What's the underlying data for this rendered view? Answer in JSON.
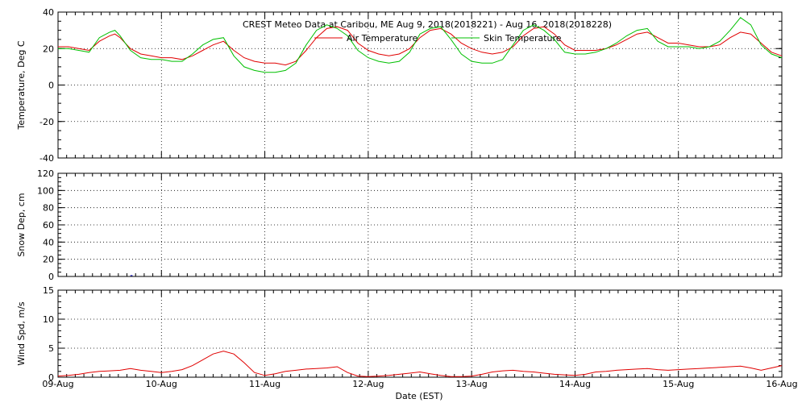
{
  "figure": {
    "title": "CREST Meteo Data at Caribou, ME   Aug  9, 2018(2018221) - Aug 16, 2018(2018228)",
    "xlabel": "Date (EST)"
  },
  "chart_data": [
    {
      "type": "line",
      "panel": "temperature",
      "ylabel": "Temperature, Deg C",
      "ylim": [
        -40,
        40
      ],
      "yticks": [
        -40,
        -20,
        0,
        20,
        40
      ],
      "xlim": [
        "2018-08-09",
        "2018-08-16"
      ],
      "xticks": [
        "09-Aug",
        "10-Aug",
        "11-Aug",
        "12-Aug",
        "13-Aug",
        "14-Aug",
        "15-Aug",
        "16-Aug"
      ],
      "grid": true,
      "legend_placement": "top",
      "series": [
        {
          "name": "Air Temperature",
          "color": "#e00000",
          "x": [
            9.0,
            9.1,
            9.2,
            9.3,
            9.4,
            9.5,
            9.55,
            9.6,
            9.7,
            9.8,
            9.9,
            10.0,
            10.1,
            10.2,
            10.3,
            10.4,
            10.5,
            10.6,
            10.7,
            10.8,
            10.9,
            11.0,
            11.1,
            11.2,
            11.3,
            11.4,
            11.5,
            11.6,
            11.7,
            11.8,
            11.9,
            12.0,
            12.1,
            12.2,
            12.3,
            12.4,
            12.5,
            12.6,
            12.7,
            12.8,
            12.9,
            13.0,
            13.1,
            13.2,
            13.3,
            13.4,
            13.5,
            13.6,
            13.7,
            13.8,
            13.9,
            14.0,
            14.1,
            14.2,
            14.3,
            14.4,
            14.5,
            14.6,
            14.7,
            14.8,
            14.9,
            15.0,
            15.1,
            15.2,
            15.3,
            15.4,
            15.5,
            15.6,
            15.7,
            15.8,
            15.9,
            16.0
          ],
          "values": [
            21,
            21,
            20,
            19,
            24,
            27,
            28,
            26,
            20,
            17,
            16,
            15,
            15,
            14,
            16,
            19,
            22,
            24,
            19,
            15,
            13,
            12,
            12,
            11,
            13,
            19,
            26,
            31,
            32,
            30,
            23,
            19,
            17,
            16,
            17,
            20,
            26,
            30,
            31,
            28,
            23,
            20,
            18,
            17,
            18,
            21,
            27,
            31,
            32,
            28,
            22,
            19,
            19,
            19,
            20,
            22,
            25,
            28,
            29,
            26,
            23,
            23,
            22,
            21,
            21,
            22,
            26,
            29,
            28,
            23,
            18,
            16
          ]
        },
        {
          "name": "Skin Temperature",
          "color": "#00c000",
          "x": [
            9.0,
            9.1,
            9.2,
            9.3,
            9.4,
            9.5,
            9.55,
            9.6,
            9.7,
            9.8,
            9.9,
            10.0,
            10.1,
            10.2,
            10.3,
            10.4,
            10.5,
            10.6,
            10.7,
            10.8,
            10.9,
            11.0,
            11.1,
            11.2,
            11.3,
            11.4,
            11.5,
            11.6,
            11.7,
            11.8,
            11.9,
            12.0,
            12.1,
            12.2,
            12.3,
            12.4,
            12.5,
            12.6,
            12.7,
            12.8,
            12.9,
            13.0,
            13.1,
            13.2,
            13.3,
            13.4,
            13.5,
            13.6,
            13.7,
            13.8,
            13.9,
            14.0,
            14.1,
            14.2,
            14.3,
            14.4,
            14.5,
            14.6,
            14.7,
            14.8,
            14.9,
            15.0,
            15.1,
            15.2,
            15.3,
            15.4,
            15.5,
            15.6,
            15.7,
            15.8,
            15.9,
            16.0
          ],
          "values": [
            20,
            20,
            19,
            18,
            26,
            29,
            30,
            27,
            19,
            15,
            14,
            14,
            13,
            13,
            17,
            22,
            25,
            26,
            16,
            10,
            8,
            7,
            7,
            8,
            12,
            22,
            30,
            33,
            31,
            27,
            19,
            15,
            13,
            12,
            13,
            18,
            28,
            31,
            32,
            25,
            17,
            13,
            12,
            12,
            14,
            22,
            30,
            33,
            30,
            25,
            18,
            17,
            17,
            18,
            20,
            23,
            27,
            30,
            31,
            24,
            21,
            21,
            21,
            20,
            21,
            24,
            30,
            37,
            33,
            22,
            17,
            15
          ]
        }
      ]
    },
    {
      "type": "line",
      "panel": "snow",
      "ylabel": "Snow Dep, cm",
      "ylim": [
        0,
        120
      ],
      "yticks": [
        0,
        20,
        40,
        60,
        80,
        100,
        120
      ],
      "xlim": [
        "2018-08-09",
        "2018-08-16"
      ],
      "grid": true,
      "series": [
        {
          "color": "#0000c0",
          "x": [
            9.7,
            9.72
          ],
          "values": [
            1,
            1
          ]
        }
      ]
    },
    {
      "type": "line",
      "panel": "wind",
      "ylabel": "Wind Spd, m/s",
      "ylim": [
        0,
        15
      ],
      "yticks": [
        0,
        5,
        10,
        15
      ],
      "xlim": [
        "2018-08-09",
        "2018-08-16"
      ],
      "grid": true,
      "series": [
        {
          "color": "#e00000",
          "x": [
            9.0,
            9.1,
            9.2,
            9.3,
            9.4,
            9.5,
            9.6,
            9.7,
            9.8,
            9.9,
            10.0,
            10.1,
            10.2,
            10.3,
            10.4,
            10.5,
            10.6,
            10.7,
            10.8,
            10.9,
            11.0,
            11.1,
            11.2,
            11.3,
            11.4,
            11.5,
            11.6,
            11.7,
            11.8,
            11.9,
            12.0,
            12.1,
            12.2,
            12.3,
            12.4,
            12.5,
            12.6,
            12.7,
            12.8,
            12.9,
            13.0,
            13.1,
            13.2,
            13.3,
            13.4,
            13.5,
            13.6,
            13.7,
            13.8,
            13.9,
            14.0,
            14.1,
            14.2,
            14.3,
            14.4,
            14.5,
            14.6,
            14.7,
            14.8,
            14.9,
            15.0,
            15.1,
            15.2,
            15.3,
            15.4,
            15.5,
            15.6,
            15.7,
            15.8,
            15.9,
            16.0
          ],
          "values": [
            0.2,
            0.3,
            0.5,
            0.8,
            1.0,
            1.1,
            1.2,
            1.5,
            1.2,
            1.0,
            0.8,
            1.0,
            1.3,
            2.0,
            3.0,
            4.0,
            4.5,
            4.0,
            2.5,
            0.8,
            0.3,
            0.6,
            1.0,
            1.2,
            1.4,
            1.5,
            1.6,
            1.8,
            0.8,
            0.2,
            0.1,
            0.2,
            0.3,
            0.5,
            0.7,
            0.9,
            0.6,
            0.3,
            0.1,
            0.1,
            0.2,
            0.5,
            0.9,
            1.1,
            1.2,
            1.0,
            0.9,
            0.7,
            0.5,
            0.4,
            0.3,
            0.5,
            0.9,
            1.0,
            1.2,
            1.3,
            1.4,
            1.5,
            1.3,
            1.2,
            1.3,
            1.4,
            1.5,
            1.6,
            1.7,
            1.8,
            1.9,
            1.6,
            1.2,
            1.6,
            2.0
          ]
        }
      ]
    }
  ]
}
